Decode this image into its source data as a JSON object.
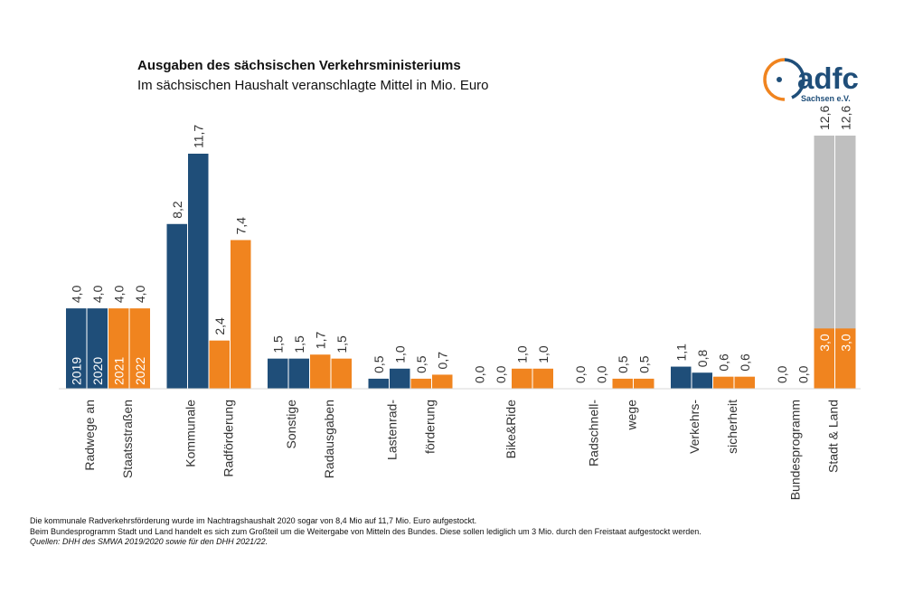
{
  "title": "Ausgaben des sächsischen Verkehrsministeriums",
  "subtitle": "Im sächsischen Haushalt veranschlagte Mittel in Mio. Euro",
  "logo": {
    "text": "adfc",
    "subtext": "Sachsen e.V."
  },
  "notes": [
    "Die kommunale Radverkehrsförderung  wurde im Nachtragshaushalt 2020 sogar von 8,4 Mio auf 11,7 Mio. Euro aufgestockt.",
    "Beim Bundesprogramm  Stadt und Land handelt es sich zum Großteil um die Weitergabe von Mitteln des Bundes. Diese sollen lediglich um 3 Mio. durch den Freistaat aufgestockt werden."
  ],
  "sources_label": "Quellen:",
  "sources_text": "DHH des SMWA 2019/2020 sowie für den DHH 2021/22.",
  "colors": {
    "blue": "#1f4e79",
    "orange": "#f0841f",
    "gray": "#bfbfbf"
  },
  "chart_data": {
    "type": "bar",
    "categories": [
      [
        "Radwege an",
        "Staatsstraßen"
      ],
      [
        "Kommunale",
        "Radförderung"
      ],
      [
        "Sonstige",
        "Radausgaben"
      ],
      [
        "Lastenrad-",
        "förderung"
      ],
      [
        "Bike&Ride"
      ],
      [
        "Radschnell-",
        "wege"
      ],
      [
        "Verkehrs-",
        "sicherheit"
      ],
      [
        "Bundesprogramm",
        "Stadt & Land"
      ]
    ],
    "series": [
      {
        "name": "2019",
        "color": "#1f4e79",
        "values": [
          4.0,
          8.2,
          1.5,
          0.5,
          0.0,
          0.0,
          1.1,
          0.0
        ],
        "labels": [
          "4,0",
          "8,2",
          "1,5",
          "0,5",
          "0,0",
          "0,0",
          "1,1",
          "0,0"
        ]
      },
      {
        "name": "2020",
        "color": "#1f4e79",
        "values": [
          4.0,
          11.7,
          1.5,
          1.0,
          0.0,
          0.0,
          0.8,
          0.0
        ],
        "labels": [
          "4,0",
          "11,7",
          "1,5",
          "1,0",
          "0,0",
          "0,0",
          "0,8",
          "0,0"
        ]
      },
      {
        "name": "2021",
        "color": "#f0841f",
        "values": [
          4.0,
          2.4,
          1.7,
          0.5,
          1.0,
          0.5,
          0.6,
          3.0
        ],
        "labels": [
          "4,0",
          "2,4",
          "1,7",
          "0,5",
          "1,0",
          "0,5",
          "0,6",
          "3,0"
        ]
      },
      {
        "name": "2022",
        "color": "#f0841f",
        "values": [
          4.0,
          7.4,
          1.5,
          0.7,
          1.0,
          0.5,
          0.6,
          3.0
        ],
        "labels": [
          "4,0",
          "7,4",
          "1,5",
          "0,7",
          "1,0",
          "0,5",
          "0,6",
          "3,0"
        ]
      }
    ],
    "bundesprogramm_total": {
      "values": [
        12.6,
        12.6
      ],
      "labels": [
        "12,6",
        "12,6"
      ],
      "color": "#bfbfbf"
    },
    "ylim": [
      0,
      13.5
    ],
    "grid": false
  }
}
